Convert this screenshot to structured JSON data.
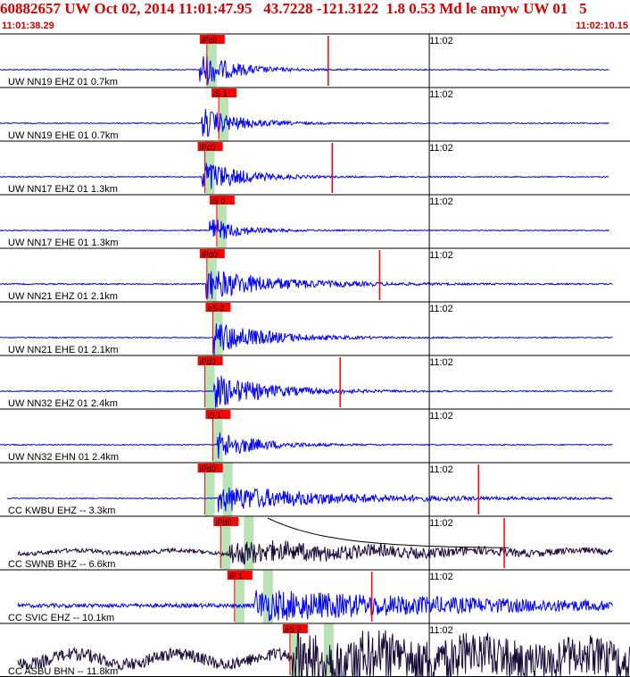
{
  "header": {
    "title": "60882657 UW Oct 02, 2014 11:01:47.95   43.7228 -121.3122  1.8 0.53 Md le amyw UW 01   5",
    "start_time": "11:01:38.29",
    "end_time": "11:02:10.15"
  },
  "colors": {
    "header": "#d40000",
    "trace_velocity": "#0000ff",
    "trace_broadband": "#1a0a3a",
    "pick": "#ff0000",
    "pick_band": "#b9e3b4",
    "frame": "#000000"
  },
  "chart_data": {
    "type": "line",
    "title": "60882657 UW Oct 02, 2014 11:01:47.95   43.7228 -121.3122  1.8 0.53 Md le amyw UW 01   5",
    "x_range_seconds": [
      0,
      31.86
    ],
    "time_mark": {
      "label": "11:02",
      "t": 21.71
    },
    "coda_trend_line": true,
    "channels": [
      {
        "label": "UW NN19 EHZ 01 0.7km",
        "pick": "iPc0",
        "pick_t": 10.1,
        "onset_t": 10.1,
        "end_t": 30.8,
        "amp": 0.75,
        "decay": 1.7,
        "noise": 0.02,
        "color": "blue",
        "coda_t": 16.6
      },
      {
        "label": "UW NN19 EHE 01 0.7km",
        "pick": "iS 1",
        "pick_t": 10.7,
        "onset_t": 10.2,
        "end_t": 30.8,
        "amp": 0.65,
        "decay": 1.8,
        "noise": 0.02,
        "color": "blue",
        "coda_t": null
      },
      {
        "label": "UW NN17 EHZ 01 1.3km",
        "pick": "iPc0",
        "pick_t": 10.0,
        "onset_t": 10.2,
        "end_t": 30.8,
        "amp": 0.75,
        "decay": 1.9,
        "noise": 0.02,
        "color": "blue",
        "coda_t": 16.8
      },
      {
        "label": "UW NN17 EHE 01 1.3km",
        "pick": "iS 0",
        "pick_t": 10.6,
        "onset_t": 10.6,
        "end_t": 30.8,
        "amp": 0.55,
        "decay": 1.5,
        "noise": 0.02,
        "color": "blue",
        "coda_t": null
      },
      {
        "label": "UW NN21 EHZ 01 2.1km",
        "pick": "iPd0",
        "pick_t": 10.1,
        "onset_t": 10.4,
        "end_t": 31.0,
        "amp": 0.65,
        "decay": 3.5,
        "noise": 0.025,
        "color": "blue",
        "coda_t": 19.2
      },
      {
        "label": "UW NN21 EHE 01 2.1km",
        "pick": "eS 2",
        "pick_t": 10.4,
        "onset_t": 10.8,
        "end_t": 31.0,
        "amp": 0.7,
        "decay": 2.6,
        "noise": 0.02,
        "color": "blue",
        "coda_t": null
      },
      {
        "label": "UW NN32 EHZ 01 2.4km",
        "pick": "iPd0",
        "pick_t": 10.0,
        "onset_t": 10.8,
        "end_t": 31.0,
        "amp": 0.7,
        "decay": 2.8,
        "noise": 0.02,
        "color": "blue",
        "coda_t": 17.2
      },
      {
        "label": "UW NN32 EHN 01 2.4km",
        "pick": "iS 1",
        "pick_t": 10.4,
        "onset_t": 11.0,
        "end_t": 31.0,
        "amp": 0.6,
        "decay": 2.0,
        "noise": 0.02,
        "color": "blue",
        "coda_t": null
      },
      {
        "label": "CC KWBU EHZ -- 3.3km",
        "pick": "iPd0",
        "pick_t": 10.0,
        "onset_t": 11.0,
        "end_t": 31.0,
        "amp": 0.55,
        "decay": 6.0,
        "noise": 0.02,
        "color": "blue",
        "coda_t": 24.2
      },
      {
        "label": "CC SWNB BHZ -- 6.6km",
        "pick": "iPd0",
        "pick_t": 10.8,
        "onset_t": 11.6,
        "end_t": 31.0,
        "amp": 0.45,
        "decay": 8.0,
        "noise": 0.08,
        "color": "dark",
        "coda_t": 25.5
      },
      {
        "label": "CC SVIC EHZ -- 10.1km",
        "pick": "iP 1",
        "pick_t": 11.5,
        "onset_t": 12.8,
        "end_t": 31.0,
        "amp": 0.6,
        "decay": 12.0,
        "noise": 0.08,
        "color": "blue",
        "coda_t": 18.8
      },
      {
        "label": "CC ASBU BHN -- 11.8km",
        "pick": "eS 2",
        "pick_t": 14.3,
        "onset_t": 14.8,
        "end_t": 31.86,
        "amp": 0.9,
        "decay": 30.0,
        "noise": 0.25,
        "color": "dark",
        "coda_t": null
      }
    ]
  }
}
